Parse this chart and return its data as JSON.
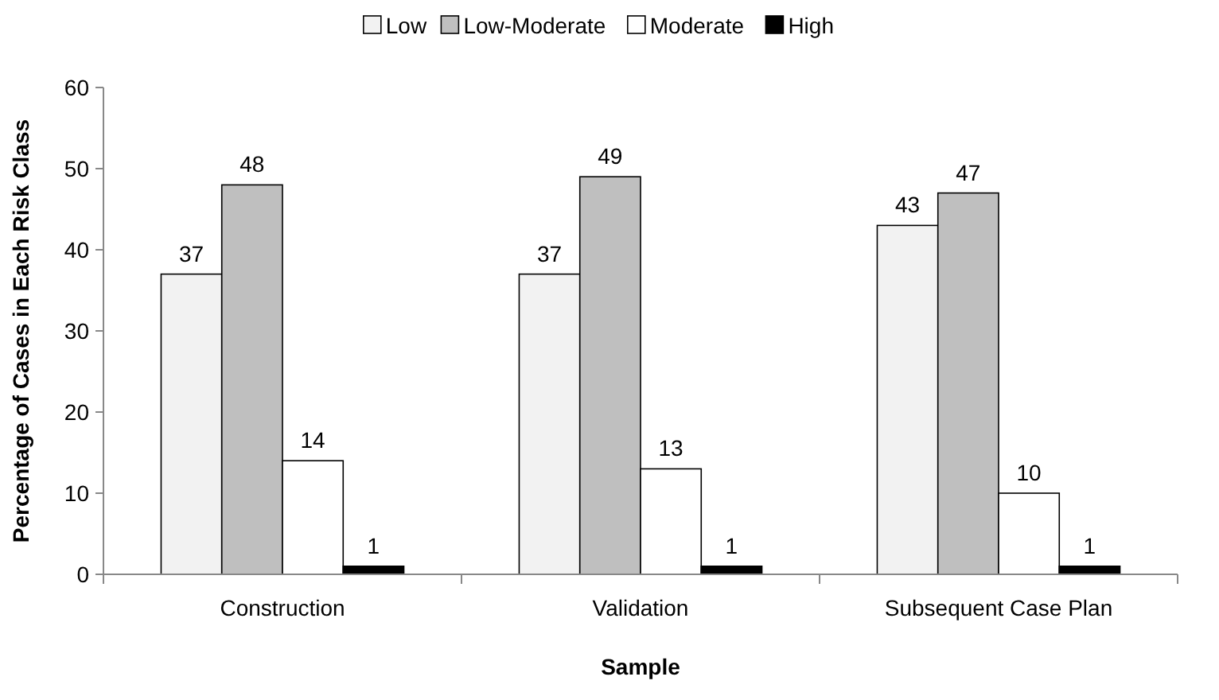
{
  "chart_data": {
    "type": "bar",
    "xlabel": "Sample",
    "ylabel": "Percentage of Cases in Each Risk Class",
    "categories": [
      "Construction",
      "Validation",
      "Subsequent Case Plan"
    ],
    "series": [
      {
        "name": "Low",
        "color": "#f2f2f2",
        "values": [
          37,
          37,
          43
        ]
      },
      {
        "name": "Low-Moderate",
        "color": "#bfbfbf",
        "values": [
          48,
          49,
          47
        ]
      },
      {
        "name": "Moderate",
        "color": "#ffffff",
        "values": [
          14,
          13,
          10
        ]
      },
      {
        "name": "High",
        "color": "#000000",
        "values": [
          1,
          1,
          1
        ]
      }
    ],
    "ylim": [
      0,
      60
    ],
    "yticks": [
      0,
      10,
      20,
      30,
      40,
      50,
      60
    ],
    "grid": false,
    "legend": "top",
    "data_labels": true
  }
}
